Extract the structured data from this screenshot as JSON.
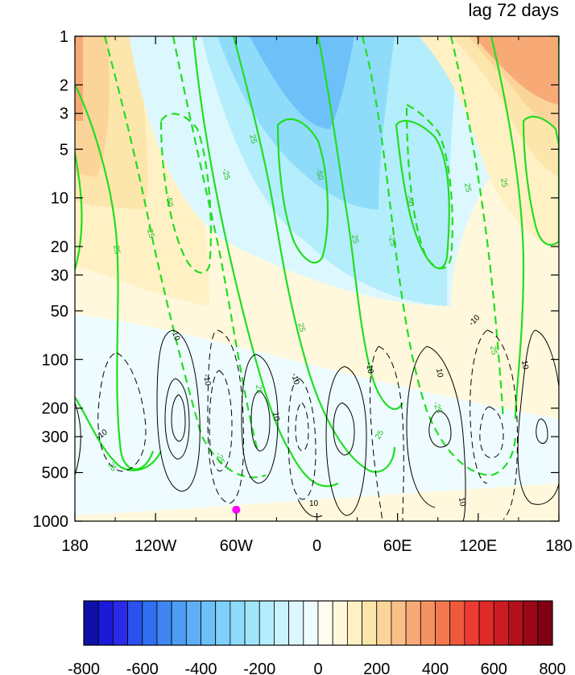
{
  "chart_data": {
    "type": "heatmap",
    "title": "lag 72 days",
    "x_ticks": [
      "180",
      "120W",
      "60W",
      "0",
      "60E",
      "120E",
      "180"
    ],
    "x_values": [
      -180,
      -120,
      -60,
      0,
      60,
      120,
      180
    ],
    "y_ticks": [
      "1",
      "2",
      "3",
      "5",
      "10",
      "20",
      "30",
      "50",
      "100",
      "200",
      "300",
      "500",
      "1000"
    ],
    "y_values": [
      1,
      2,
      3,
      5,
      10,
      20,
      30,
      50,
      100,
      200,
      300,
      500,
      1000
    ],
    "y_scale": "log",
    "y_reversed": true,
    "xlim": [
      -180,
      180
    ],
    "ylim": [
      1000,
      1
    ],
    "colorbar": {
      "orientation": "horizontal",
      "labels": [
        "-800",
        "-600",
        "-400",
        "-200",
        "0",
        "200",
        "400",
        "600",
        "800"
      ],
      "levels": [
        -800,
        -750,
        -700,
        -650,
        -600,
        -550,
        -500,
        -450,
        -400,
        -350,
        -300,
        -250,
        -200,
        -150,
        -100,
        -50,
        0,
        50,
        100,
        150,
        200,
        250,
        300,
        350,
        400,
        450,
        500,
        550,
        600,
        650,
        700,
        750,
        800
      ],
      "colors": [
        "#1010a8",
        "#1a1ad8",
        "#2a2ae8",
        "#2a50f0",
        "#3070f0",
        "#3f86f2",
        "#4e9cf4",
        "#5eaef6",
        "#6ec0f8",
        "#7ecff9",
        "#8edcfa",
        "#a0e6fb",
        "#b4edfc",
        "#c8f3fd",
        "#dcf8fe",
        "#eefcff",
        "#fffdf0",
        "#fff8dc",
        "#fff1c4",
        "#fde6ac",
        "#fbd49a",
        "#f9c088",
        "#f7aa76",
        "#f59262",
        "#f3784e",
        "#f05a3c",
        "#ec3c32",
        "#e02a2a",
        "#cc1c22",
        "#b4101c",
        "#9a0818",
        "#800014"
      ]
    },
    "shading": [
      {
        "region": "upper-left",
        "x": [
          -180,
          -140
        ],
        "y": [
          1,
          30
        ],
        "value": 300
      },
      {
        "region": "upper-centre",
        "x": [
          -60,
          30
        ],
        "y": [
          1,
          30
        ],
        "value": -400
      },
      {
        "region": "upper-right",
        "x": [
          130,
          180
        ],
        "y": [
          1,
          10
        ],
        "value": 350
      },
      {
        "region": "lower",
        "x": [
          -180,
          180
        ],
        "y": [
          100,
          1000
        ],
        "value": -50
      }
    ],
    "contour_labels_green": [
      "25",
      "-25",
      "-50"
    ],
    "contour_labels_black": [
      "10",
      "-10"
    ],
    "marker": {
      "x": -60,
      "y": 850,
      "color": "#ff00ff"
    }
  }
}
